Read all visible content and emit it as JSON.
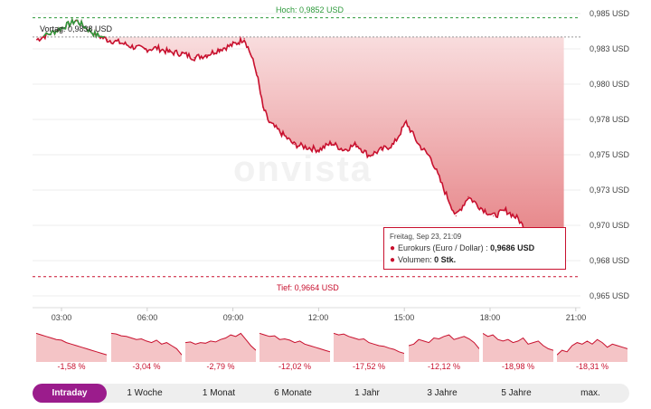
{
  "colors": {
    "down": "#c8102e",
    "up": "#2e9a3c",
    "fill_top": "#e26f73",
    "tab_active": "#9b1c8c"
  },
  "main_chart": {
    "high_label": "Hoch: 0,9852 USD",
    "low_label": "Tief: 0,9664 USD",
    "prev_close_label": "Vortag: 0,9838 USD",
    "watermark": "onvista",
    "y_ticks": [
      "0,985 USD",
      "0,983 USD",
      "0,980 USD",
      "0,978 USD",
      "0,975 USD",
      "0,973 USD",
      "0,970 USD",
      "0,968 USD",
      "0,965 USD"
    ],
    "x_ticks": [
      "03:00",
      "06:00",
      "09:00",
      "12:00",
      "15:00",
      "18:00",
      "21:00"
    ]
  },
  "tooltip": {
    "time": "Freitag, Sep 23, 21:09",
    "row1_label": "Eurokurs (Euro / Dollar) :",
    "row1_value": "0,9686 USD",
    "row2_label": "Volumen:",
    "row2_value": "0 Stk."
  },
  "chart_data": {
    "type": "line",
    "title": "",
    "xlabel": "",
    "ylabel": "",
    "x": [
      "00:10",
      "01:00",
      "01:45",
      "02:30",
      "03:00",
      "03:30",
      "04:00",
      "04:30",
      "05:00",
      "05:30",
      "06:00",
      "06:30",
      "07:00",
      "07:30",
      "08:00",
      "08:15",
      "08:30",
      "08:45",
      "09:00",
      "09:15",
      "09:30",
      "10:00",
      "10:30",
      "11:00",
      "11:30",
      "12:00",
      "12:30",
      "13:00",
      "13:30",
      "14:00",
      "14:30",
      "15:00",
      "15:30",
      "16:00",
      "16:30",
      "17:00",
      "17:30",
      "18:00",
      "18:30",
      "19:00",
      "19:30",
      "20:00",
      "20:30",
      "20:50",
      "21:09",
      "21:20"
    ],
    "series": [
      {
        "name": "Eurokurs (Euro / Dollar)",
        "values": [
          0.9836,
          0.9843,
          0.985,
          0.984,
          0.9836,
          0.9834,
          0.9831,
          0.9829,
          0.983,
          0.9827,
          0.9826,
          0.9823,
          0.9825,
          0.9829,
          0.9832,
          0.9834,
          0.9837,
          0.9826,
          0.9812,
          0.9787,
          0.9776,
          0.9768,
          0.976,
          0.9758,
          0.9756,
          0.9761,
          0.9756,
          0.976,
          0.9752,
          0.9756,
          0.976,
          0.9776,
          0.976,
          0.975,
          0.9728,
          0.9708,
          0.9722,
          0.9714,
          0.9708,
          0.9712,
          0.9706,
          0.9692,
          0.969,
          0.968,
          0.9686,
          0.9692
        ]
      }
    ],
    "ylim": [
      0.965,
      0.9855
    ],
    "reference_lines": {
      "high": 0.9852,
      "low": 0.9664,
      "previous_close": 0.9838
    }
  },
  "mini_charts": [
    {
      "pct": "-1,58 %",
      "points": [
        0.9,
        0.85,
        0.8,
        0.75,
        0.7,
        0.68,
        0.6,
        0.55,
        0.5,
        0.45,
        0.4,
        0.35,
        0.3,
        0.25,
        0.2
      ]
    },
    {
      "pct": "-3,04 %",
      "points": [
        0.9,
        0.88,
        0.82,
        0.8,
        0.75,
        0.7,
        0.72,
        0.65,
        0.6,
        0.68,
        0.55,
        0.6,
        0.5,
        0.4,
        0.2
      ]
    },
    {
      "pct": "-2,79 %",
      "points": [
        0.6,
        0.62,
        0.55,
        0.6,
        0.58,
        0.65,
        0.62,
        0.7,
        0.75,
        0.85,
        0.8,
        0.9,
        0.7,
        0.5,
        0.35
      ]
    },
    {
      "pct": "-12,02 %",
      "points": [
        0.9,
        0.85,
        0.8,
        0.82,
        0.7,
        0.72,
        0.68,
        0.6,
        0.65,
        0.55,
        0.5,
        0.45,
        0.4,
        0.35,
        0.3
      ]
    },
    {
      "pct": "-17,52 %",
      "points": [
        0.9,
        0.85,
        0.88,
        0.8,
        0.75,
        0.7,
        0.72,
        0.6,
        0.55,
        0.5,
        0.48,
        0.42,
        0.38,
        0.3,
        0.25
      ]
    },
    {
      "pct": "-12,12 %",
      "points": [
        0.5,
        0.55,
        0.7,
        0.65,
        0.6,
        0.75,
        0.72,
        0.8,
        0.85,
        0.7,
        0.75,
        0.8,
        0.72,
        0.6,
        0.4
      ]
    },
    {
      "pct": "-18,98 %",
      "points": [
        0.9,
        0.8,
        0.85,
        0.7,
        0.65,
        0.7,
        0.6,
        0.65,
        0.75,
        0.55,
        0.6,
        0.65,
        0.5,
        0.4,
        0.35
      ]
    },
    {
      "pct": "-18,31 %",
      "points": [
        0.2,
        0.35,
        0.3,
        0.5,
        0.6,
        0.55,
        0.65,
        0.55,
        0.7,
        0.6,
        0.45,
        0.55,
        0.5,
        0.45,
        0.4
      ]
    }
  ],
  "tabs": [
    "Intraday",
    "1 Woche",
    "1 Monat",
    "6 Monate",
    "1 Jahr",
    "3 Jahre",
    "5 Jahre",
    "max."
  ],
  "active_tab": "Intraday"
}
